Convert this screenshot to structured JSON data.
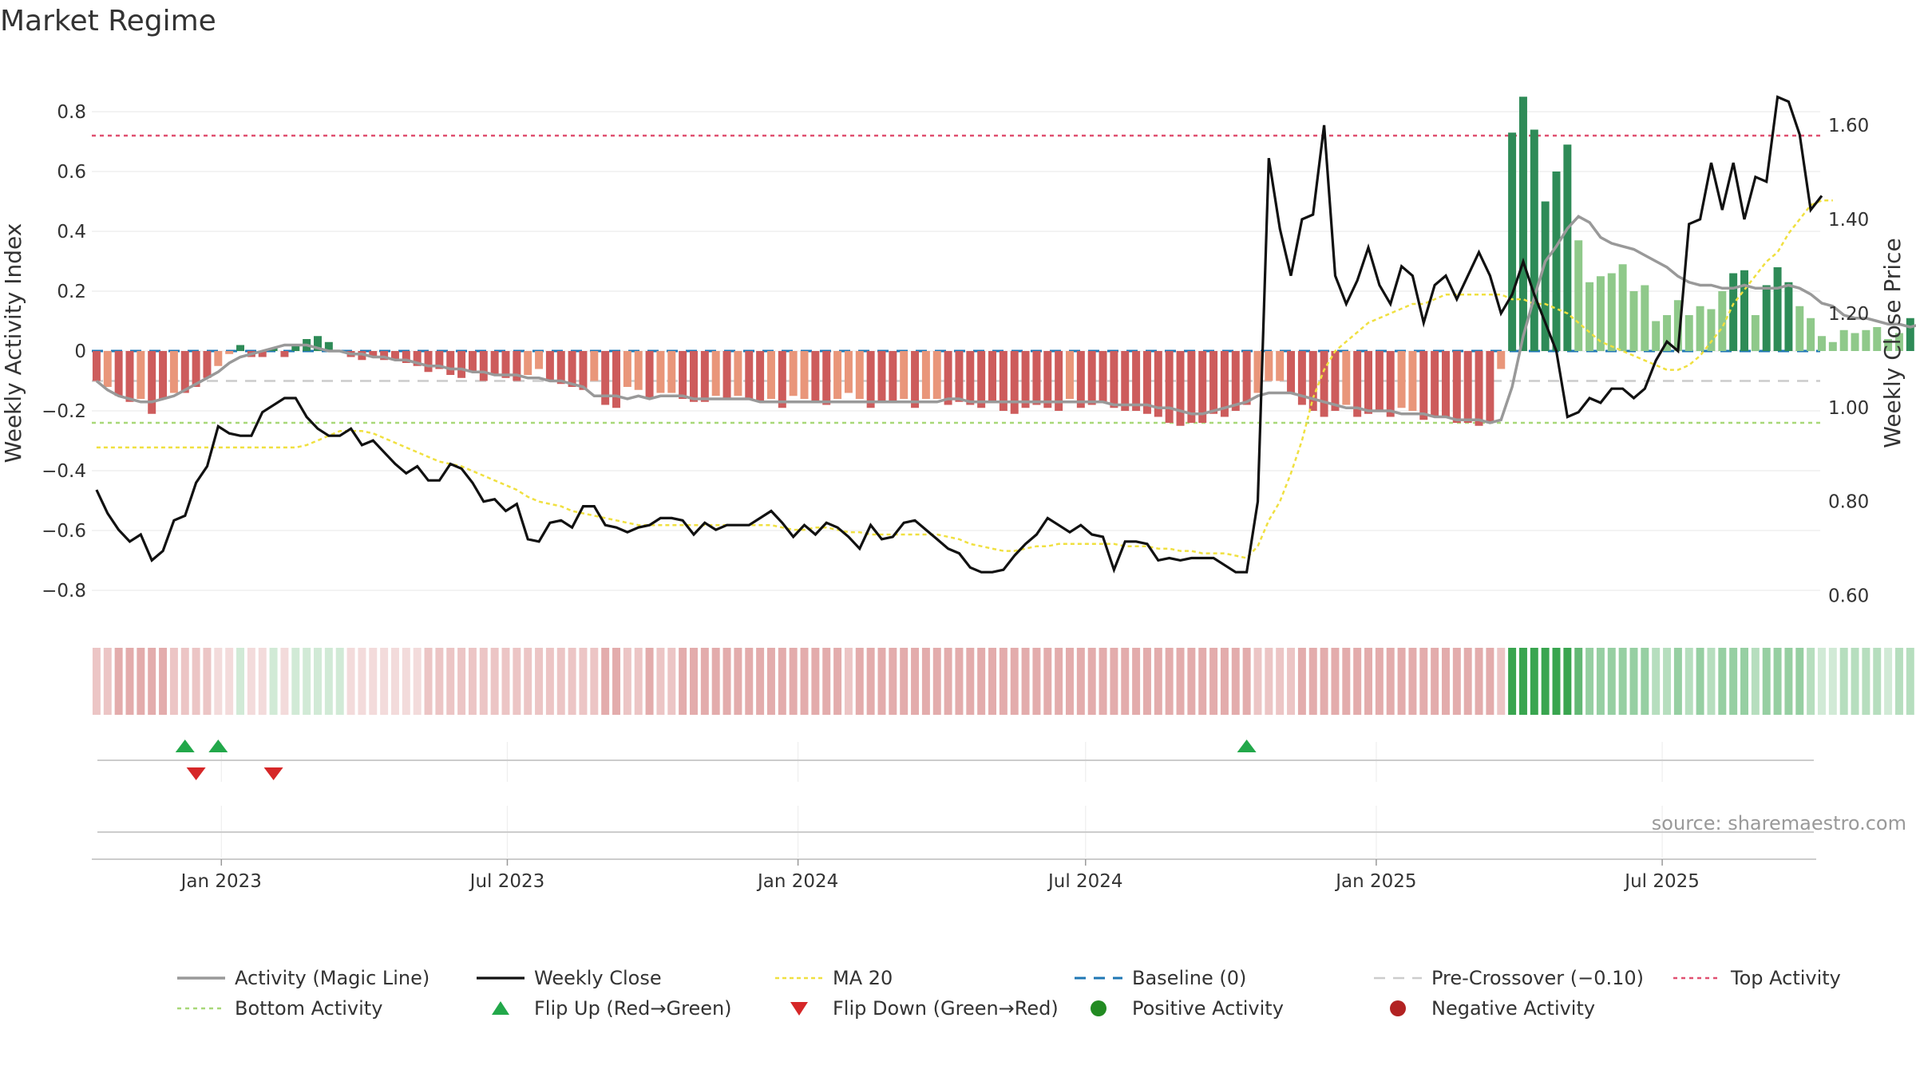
{
  "chart_data": {
    "type": "bar",
    "title": "Market Regime",
    "ylabel": "Weekly Activity Index",
    "y2label": "Weekly Close Price",
    "ylim": [
      -0.92,
      0.92
    ],
    "y2lim": [
      0.535,
      1.705
    ],
    "yticks": [
      {
        "value": 0.8,
        "label": "0.8"
      },
      {
        "value": 0.6,
        "label": "0.6"
      },
      {
        "value": 0.4,
        "label": "0.4"
      },
      {
        "value": 0.2,
        "label": "0.2"
      },
      {
        "value": 0,
        "label": "0"
      },
      {
        "value": -0.2,
        "label": "−0.2"
      },
      {
        "value": -0.4,
        "label": "−0.4"
      },
      {
        "value": -0.6,
        "label": "−0.6"
      },
      {
        "value": -0.8,
        "label": "−0.8"
      }
    ],
    "y2ticks": [
      {
        "value": 1.6,
        "label": "1.60"
      },
      {
        "value": 1.4,
        "label": "1.40"
      },
      {
        "value": 1.2,
        "label": "1.20"
      },
      {
        "value": 1.0,
        "label": "1.00"
      },
      {
        "value": 0.8,
        "label": "0.80"
      },
      {
        "value": 0.6,
        "label": "0.60"
      }
    ],
    "xlim": [
      "2022-10-11",
      "2025-10-09"
    ],
    "xticks": [
      {
        "date": "2023-01-01",
        "label": "Jan 2023"
      },
      {
        "date": "2023-07-01",
        "label": "Jul 2023"
      },
      {
        "date": "2024-01-01",
        "label": "Jan 2024"
      },
      {
        "date": "2024-07-01",
        "label": "Jul 2024"
      },
      {
        "date": "2025-01-01",
        "label": "Jan 2025"
      },
      {
        "date": "2025-07-01",
        "label": "Jul 2025"
      }
    ],
    "start_date": "2022-10-14",
    "levels": {
      "top": 0.72,
      "bottom": -0.24,
      "baseline": 0,
      "pre_crossover": -0.1
    },
    "activity": [
      -0.1,
      -0.12,
      -0.15,
      -0.17,
      -0.16,
      -0.21,
      -0.16,
      -0.14,
      -0.14,
      -0.12,
      -0.09,
      -0.05,
      -0.01,
      0.02,
      -0.02,
      -0.02,
      0.01,
      -0.02,
      0.02,
      0.04,
      0.05,
      0.03,
      0.0,
      -0.02,
      -0.03,
      -0.02,
      -0.03,
      -0.03,
      -0.04,
      -0.05,
      -0.07,
      -0.06,
      -0.08,
      -0.09,
      -0.07,
      -0.1,
      -0.08,
      -0.09,
      -0.1,
      -0.08,
      -0.06,
      -0.1,
      -0.11,
      -0.12,
      -0.13,
      -0.1,
      -0.18,
      -0.19,
      -0.12,
      -0.13,
      -0.16,
      -0.14,
      -0.14,
      -0.16,
      -0.17,
      -0.17,
      -0.15,
      -0.16,
      -0.15,
      -0.16,
      -0.17,
      -0.16,
      -0.19,
      -0.15,
      -0.16,
      -0.17,
      -0.18,
      -0.16,
      -0.14,
      -0.16,
      -0.19,
      -0.17,
      -0.17,
      -0.16,
      -0.19,
      -0.16,
      -0.16,
      -0.18,
      -0.17,
      -0.18,
      -0.19,
      -0.17,
      -0.2,
      -0.21,
      -0.19,
      -0.18,
      -0.19,
      -0.2,
      -0.16,
      -0.19,
      -0.18,
      -0.17,
      -0.19,
      -0.2,
      -0.2,
      -0.21,
      -0.22,
      -0.24,
      -0.25,
      -0.24,
      -0.24,
      -0.21,
      -0.22,
      -0.2,
      -0.18,
      -0.14,
      -0.1,
      -0.1,
      -0.14,
      -0.18,
      -0.2,
      -0.22,
      -0.2,
      -0.18,
      -0.22,
      -0.21,
      -0.2,
      -0.22,
      -0.19,
      -0.2,
      -0.23,
      -0.22,
      -0.22,
      -0.24,
      -0.24,
      -0.25,
      -0.24,
      -0.06,
      0.73,
      0.85,
      0.74,
      0.5,
      0.6,
      0.69,
      0.37,
      0.23,
      0.25,
      0.26,
      0.29,
      0.2,
      0.22,
      0.1,
      0.12,
      0.17,
      0.12,
      0.15,
      0.14,
      0.2,
      0.26,
      0.27,
      0.12,
      0.22,
      0.28,
      0.23,
      0.15,
      0.11,
      0.05,
      0.03,
      0.07,
      0.06,
      0.07,
      0.08,
      0.04,
      0.06,
      0.11,
      0.2,
      0.15,
      0.56,
      0.4,
      0.5,
      0.37,
      0.46,
      0.43,
      0.38,
      0.44,
      0.48,
      0.59,
      0.41,
      0.31,
      0.33
    ],
    "magic_line": [
      -0.1,
      -0.13,
      -0.15,
      -0.16,
      -0.17,
      -0.17,
      -0.16,
      -0.15,
      -0.13,
      -0.11,
      -0.09,
      -0.07,
      -0.04,
      -0.02,
      -0.01,
      0.0,
      0.01,
      0.02,
      0.02,
      0.02,
      0.01,
      0.0,
      0.0,
      -0.01,
      -0.01,
      -0.02,
      -0.02,
      -0.03,
      -0.03,
      -0.04,
      -0.05,
      -0.05,
      -0.06,
      -0.06,
      -0.07,
      -0.07,
      -0.08,
      -0.08,
      -0.08,
      -0.09,
      -0.09,
      -0.1,
      -0.1,
      -0.11,
      -0.12,
      -0.15,
      -0.15,
      -0.15,
      -0.16,
      -0.15,
      -0.16,
      -0.15,
      -0.15,
      -0.15,
      -0.16,
      -0.16,
      -0.16,
      -0.16,
      -0.16,
      -0.16,
      -0.17,
      -0.17,
      -0.17,
      -0.17,
      -0.17,
      -0.17,
      -0.17,
      -0.17,
      -0.17,
      -0.17,
      -0.17,
      -0.17,
      -0.17,
      -0.17,
      -0.17,
      -0.17,
      -0.17,
      -0.16,
      -0.16,
      -0.17,
      -0.17,
      -0.17,
      -0.17,
      -0.17,
      -0.17,
      -0.17,
      -0.17,
      -0.17,
      -0.17,
      -0.17,
      -0.17,
      -0.17,
      -0.18,
      -0.18,
      -0.18,
      -0.18,
      -0.19,
      -0.19,
      -0.2,
      -0.21,
      -0.21,
      -0.2,
      -0.19,
      -0.18,
      -0.17,
      -0.15,
      -0.14,
      -0.14,
      -0.14,
      -0.15,
      -0.16,
      -0.17,
      -0.18,
      -0.19,
      -0.19,
      -0.2,
      -0.2,
      -0.2,
      -0.21,
      -0.21,
      -0.21,
      -0.22,
      -0.22,
      -0.23,
      -0.23,
      -0.23,
      -0.24,
      -0.23,
      -0.12,
      0.05,
      0.18,
      0.3,
      0.35,
      0.41,
      0.45,
      0.43,
      0.38,
      0.36,
      0.35,
      0.34,
      0.32,
      0.3,
      0.28,
      0.25,
      0.23,
      0.22,
      0.22,
      0.21,
      0.21,
      0.22,
      0.21,
      0.21,
      0.21,
      0.22,
      0.21,
      0.19,
      0.16,
      0.15,
      0.12,
      0.11,
      0.11,
      0.1,
      0.09,
      0.09,
      0.08,
      0.09,
      0.13,
      0.16,
      0.22,
      0.26,
      0.3,
      0.33,
      0.36,
      0.37,
      0.37,
      0.37,
      0.38,
      0.43,
      0.43,
      0.4,
      0.39
    ]
  },
  "price_chart": {
    "weekly_close": [
      0.825,
      0.775,
      0.74,
      0.715,
      0.73,
      0.675,
      0.695,
      0.76,
      0.77,
      0.84,
      0.875,
      0.96,
      0.945,
      0.94,
      0.94,
      0.99,
      1.005,
      1.02,
      1.02,
      0.98,
      0.955,
      0.94,
      0.94,
      0.955,
      0.92,
      0.93,
      0.905,
      0.88,
      0.86,
      0.875,
      0.845,
      0.845,
      0.88,
      0.87,
      0.84,
      0.8,
      0.805,
      0.78,
      0.795,
      0.72,
      0.715,
      0.755,
      0.76,
      0.745,
      0.79,
      0.79,
      0.75,
      0.745,
      0.735,
      0.745,
      0.75,
      0.765,
      0.765,
      0.76,
      0.73,
      0.755,
      0.74,
      0.75,
      0.75,
      0.75,
      0.765,
      0.78,
      0.755,
      0.725,
      0.75,
      0.73,
      0.755,
      0.745,
      0.725,
      0.7,
      0.75,
      0.72,
      0.725,
      0.755,
      0.76,
      0.74,
      0.72,
      0.7,
      0.69,
      0.66,
      0.65,
      0.65,
      0.655,
      0.685,
      0.71,
      0.73,
      0.765,
      0.75,
      0.735,
      0.75,
      0.73,
      0.725,
      0.655,
      0.715,
      0.715,
      0.71,
      0.675,
      0.68,
      0.675,
      0.68,
      0.68,
      0.68,
      0.665,
      0.65,
      0.65,
      0.8,
      1.53,
      1.38,
      1.28,
      1.4,
      1.41,
      1.6,
      1.28,
      1.22,
      1.27,
      1.34,
      1.26,
      1.22,
      1.3,
      1.28,
      1.18,
      1.26,
      1.28,
      1.23,
      1.28,
      1.33,
      1.28,
      1.2,
      1.24,
      1.31,
      1.24,
      1.18,
      1.12,
      0.98,
      0.99,
      1.02,
      1.01,
      1.04,
      1.04,
      1.02,
      1.04,
      1.1,
      1.14,
      1.12,
      1.39,
      1.4,
      1.52,
      1.42,
      1.52,
      1.4,
      1.49,
      1.48,
      1.66,
      1.65,
      1.58,
      1.42,
      1.45
    ],
    "ma20": [
      0.915,
      0.915,
      0.915,
      0.915,
      0.915,
      0.915,
      0.915,
      0.915,
      0.915,
      0.915,
      0.915,
      0.915,
      0.915,
      0.915,
      0.915,
      0.915,
      0.915,
      0.915,
      0.915,
      0.92,
      0.93,
      0.94,
      0.95,
      0.95,
      0.95,
      0.945,
      0.935,
      0.925,
      0.915,
      0.905,
      0.895,
      0.885,
      0.88,
      0.875,
      0.865,
      0.855,
      0.845,
      0.835,
      0.825,
      0.81,
      0.8,
      0.795,
      0.79,
      0.78,
      0.775,
      0.77,
      0.765,
      0.76,
      0.755,
      0.75,
      0.75,
      0.75,
      0.75,
      0.75,
      0.75,
      0.75,
      0.75,
      0.75,
      0.75,
      0.75,
      0.75,
      0.75,
      0.745,
      0.74,
      0.74,
      0.745,
      0.745,
      0.74,
      0.735,
      0.735,
      0.73,
      0.73,
      0.73,
      0.73,
      0.73,
      0.73,
      0.73,
      0.725,
      0.72,
      0.71,
      0.705,
      0.7,
      0.695,
      0.695,
      0.7,
      0.705,
      0.705,
      0.71,
      0.71,
      0.71,
      0.71,
      0.71,
      0.71,
      0.705,
      0.705,
      0.705,
      0.7,
      0.7,
      0.695,
      0.695,
      0.69,
      0.69,
      0.69,
      0.685,
      0.68,
      0.705,
      0.76,
      0.8,
      0.86,
      0.93,
      1.02,
      1.08,
      1.12,
      1.14,
      1.16,
      1.18,
      1.19,
      1.2,
      1.21,
      1.22,
      1.22,
      1.23,
      1.24,
      1.24,
      1.24,
      1.24,
      1.24,
      1.24,
      1.23,
      1.23,
      1.22,
      1.22,
      1.21,
      1.2,
      1.18,
      1.16,
      1.14,
      1.13,
      1.12,
      1.11,
      1.1,
      1.09,
      1.08,
      1.08,
      1.09,
      1.11,
      1.14,
      1.17,
      1.22,
      1.25,
      1.28,
      1.31,
      1.33,
      1.37,
      1.4,
      1.43,
      1.44,
      1.44
    ]
  },
  "regime_strip": {
    "label": "regime"
  },
  "flips": {
    "up_dates": [
      "2022-12-09",
      "2022-12-30",
      "2024-10-11"
    ],
    "down_dates": [
      "2022-12-16",
      "2023-02-03"
    ]
  },
  "source": "source: sharemaestro.com",
  "legend": [
    {
      "id": "magic",
      "label": "Activity (Magic Line)"
    },
    {
      "id": "close",
      "label": "Weekly Close"
    },
    {
      "id": "ma20",
      "label": "MA 20"
    },
    {
      "id": "baseline",
      "label": "Baseline (0)"
    },
    {
      "id": "precross",
      "label": "Pre-Crossover (−0.10)"
    },
    {
      "id": "top",
      "label": "Top Activity"
    },
    {
      "id": "bottom",
      "label": "Bottom Activity"
    },
    {
      "id": "flipup",
      "label": "Flip Up (Red→Green)"
    },
    {
      "id": "flipdown",
      "label": "Flip Down (Green→Red)"
    },
    {
      "id": "posact",
      "label": "Positive Activity"
    },
    {
      "id": "negact",
      "label": "Negative Activity"
    }
  ],
  "colors": {
    "pos_strong": "#2e8b57",
    "pos_light": "#8fc98a",
    "neg_strong": "#cd5c5c",
    "neg_light": "#e9967a",
    "magic_line": "#999999",
    "close_line": "#111111",
    "ma20": "#f0e040",
    "baseline": "#1f77b4",
    "pre_crossover": "#cccccc",
    "top_activity": "#e05070",
    "bottom_activity": "#a8d878",
    "flip_up": "#22a84a",
    "flip_down": "#d62728",
    "positive_dot": "#228b22",
    "negative_dot": "#b22222"
  }
}
